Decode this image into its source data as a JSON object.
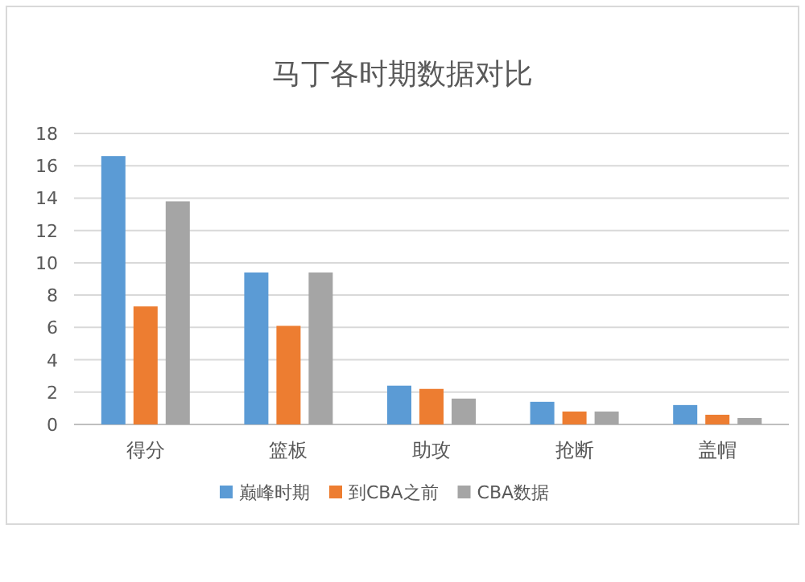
{
  "chart_data": {
    "type": "bar",
    "title": "马丁各时期数据对比",
    "categories": [
      "得分",
      "篮板",
      "助攻",
      "抢断",
      "盖帽"
    ],
    "series": [
      {
        "name": "巅峰时期",
        "color": "#5b9bd5",
        "values": [
          16.6,
          9.4,
          2.4,
          1.4,
          1.2
        ]
      },
      {
        "name": "到CBA之前",
        "color": "#ed7d31",
        "values": [
          7.3,
          6.1,
          2.2,
          0.8,
          0.6
        ]
      },
      {
        "name": "CBA数据",
        "color": "#a5a5a5",
        "values": [
          13.8,
          9.4,
          1.6,
          0.8,
          0.4
        ]
      }
    ],
    "ylim": [
      0,
      18
    ],
    "yticks": [
      0,
      2,
      4,
      6,
      8,
      10,
      12,
      14,
      16,
      18
    ],
    "grid": "y",
    "legend": "bottom"
  }
}
